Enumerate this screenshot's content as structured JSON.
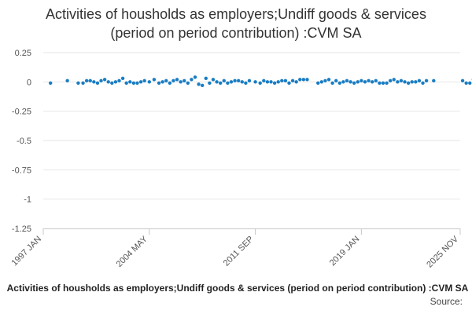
{
  "chart_data": {
    "type": "scatter",
    "title_lines": [
      "Activities of housholds as employers;Undiff goods & services",
      "(period on period contribution) :CVM SA"
    ],
    "xlabel": "Activities of housholds as employers;Undiff goods & services (period on period contribution) :CVM SA",
    "ylabel": "",
    "source_label": "Source:",
    "ylim": [
      -1.25,
      0.25
    ],
    "yticks": [
      0.25,
      0,
      -0.25,
      -0.5,
      -0.75,
      -1,
      -1.25
    ],
    "ytick_labels": [
      "0.25",
      "0",
      "-0.25",
      "-0.5",
      "-0.75",
      "-1",
      "-1.25"
    ],
    "xlim": [
      "1997-01",
      "2025-11"
    ],
    "xticks": [
      "1997-01",
      "2004-05",
      "2011-09",
      "2019-01",
      "2025-11"
    ],
    "xtick_labels": [
      "1997 JAN",
      "2004 MAY",
      "2011 SEP",
      "2019 JAN",
      "2025 NOV"
    ],
    "grid": "horizontal",
    "legend": "none",
    "marker_color": "#1a7dc3",
    "series": [
      {
        "points": [
          [
            "1997-07",
            -0.01
          ],
          [
            "1998-09",
            0.01
          ],
          [
            "1999-06",
            -0.01
          ],
          [
            "1999-10",
            -0.01
          ],
          [
            "2000-01",
            0.01
          ],
          [
            "2000-04",
            0.01
          ],
          [
            "2000-07",
            0.0
          ],
          [
            "2000-10",
            -0.01
          ],
          [
            "2001-01",
            0.01
          ],
          [
            "2001-04",
            0.02
          ],
          [
            "2001-07",
            0.0
          ],
          [
            "2001-10",
            -0.01
          ],
          [
            "2002-01",
            0.0
          ],
          [
            "2002-04",
            0.01
          ],
          [
            "2002-07",
            0.03
          ],
          [
            "2002-10",
            -0.01
          ],
          [
            "2003-01",
            0.0
          ],
          [
            "2003-04",
            -0.01
          ],
          [
            "2003-07",
            -0.01
          ],
          [
            "2003-10",
            0.0
          ],
          [
            "2004-01",
            0.01
          ],
          [
            "2004-05",
            0.0
          ],
          [
            "2004-09",
            0.02
          ],
          [
            "2005-01",
            -0.01
          ],
          [
            "2005-04",
            0.0
          ],
          [
            "2005-07",
            0.01
          ],
          [
            "2005-10",
            -0.01
          ],
          [
            "2006-01",
            0.01
          ],
          [
            "2006-04",
            0.02
          ],
          [
            "2006-07",
            0.0
          ],
          [
            "2006-10",
            0.01
          ],
          [
            "2007-01",
            -0.01
          ],
          [
            "2007-04",
            0.02
          ],
          [
            "2007-07",
            0.04
          ],
          [
            "2007-10",
            -0.02
          ],
          [
            "2008-01",
            -0.03
          ],
          [
            "2008-04",
            0.03
          ],
          [
            "2008-07",
            -0.01
          ],
          [
            "2008-10",
            0.02
          ],
          [
            "2009-01",
            0.0
          ],
          [
            "2009-04",
            -0.01
          ],
          [
            "2009-07",
            0.01
          ],
          [
            "2009-10",
            -0.01
          ],
          [
            "2010-01",
            0.0
          ],
          [
            "2010-04",
            0.01
          ],
          [
            "2010-07",
            0.01
          ],
          [
            "2010-10",
            0.0
          ],
          [
            "2011-01",
            -0.01
          ],
          [
            "2011-04",
            0.01
          ],
          [
            "2011-09",
            0.0
          ],
          [
            "2012-01",
            -0.01
          ],
          [
            "2012-04",
            0.01
          ],
          [
            "2012-07",
            0.0
          ],
          [
            "2012-10",
            0.0
          ],
          [
            "2013-01",
            -0.01
          ],
          [
            "2013-04",
            0.0
          ],
          [
            "2013-07",
            0.01
          ],
          [
            "2013-10",
            0.01
          ],
          [
            "2014-01",
            -0.01
          ],
          [
            "2014-04",
            0.01
          ],
          [
            "2014-07",
            0.0
          ],
          [
            "2014-10",
            0.02
          ],
          [
            "2015-01",
            0.02
          ],
          [
            "2015-04",
            0.02
          ],
          [
            "2016-01",
            -0.01
          ],
          [
            "2016-04",
            0.0
          ],
          [
            "2016-07",
            0.01
          ],
          [
            "2016-10",
            0.02
          ],
          [
            "2017-01",
            -0.01
          ],
          [
            "2017-04",
            0.01
          ],
          [
            "2017-07",
            -0.01
          ],
          [
            "2017-10",
            0.0
          ],
          [
            "2018-01",
            0.01
          ],
          [
            "2018-04",
            0.0
          ],
          [
            "2018-07",
            -0.01
          ],
          [
            "2018-10",
            0.0
          ],
          [
            "2019-01",
            0.01
          ],
          [
            "2019-04",
            0.0
          ],
          [
            "2019-07",
            0.01
          ],
          [
            "2019-10",
            0.0
          ],
          [
            "2020-01",
            0.01
          ],
          [
            "2020-04",
            -0.01
          ],
          [
            "2020-07",
            -0.01
          ],
          [
            "2020-10",
            -0.01
          ],
          [
            "2021-01",
            0.01
          ],
          [
            "2021-04",
            0.02
          ],
          [
            "2021-07",
            0.0
          ],
          [
            "2021-10",
            0.01
          ],
          [
            "2022-01",
            0.0
          ],
          [
            "2022-04",
            -0.01
          ],
          [
            "2022-07",
            0.0
          ],
          [
            "2022-10",
            0.0
          ],
          [
            "2023-01",
            0.01
          ],
          [
            "2023-04",
            -0.01
          ],
          [
            "2023-07",
            0.01
          ],
          [
            "2024-01",
            0.01
          ],
          [
            "2026-01",
            0.01
          ],
          [
            "2026-04",
            -0.01
          ],
          [
            "2026-07",
            -0.01
          ],
          [
            "2026-10",
            0.02
          ]
        ]
      }
    ]
  }
}
